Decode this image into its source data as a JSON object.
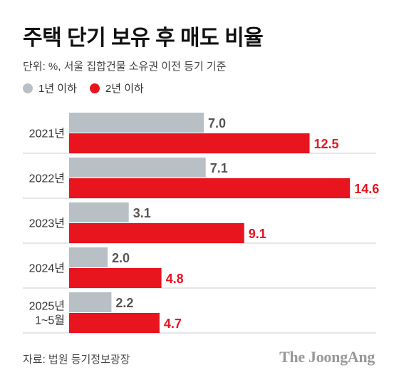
{
  "title": "주택 단기 보유 후 매도 비율",
  "subtitle": "단위: %, 서울 집합건물 소유권 이전 등기 기준",
  "source": "자료: 법원 등기정보광장",
  "brand": "The JoongAng",
  "colors": {
    "series1": "#b9c0c5",
    "series2": "#e8141e",
    "label1": "#555555",
    "label2": "#e8141e",
    "separator": "#cccccc"
  },
  "chart_data": {
    "type": "bar",
    "orientation": "horizontal",
    "categories": [
      [
        "2021년"
      ],
      [
        "2022년"
      ],
      [
        "2023년"
      ],
      [
        "2024년"
      ],
      [
        "2025년",
        "1~5월"
      ]
    ],
    "series": [
      {
        "name": "1년 이하",
        "values": [
          7.0,
          7.1,
          3.1,
          2.0,
          2.2
        ],
        "labels": [
          "7.0",
          "7.1",
          "3.1",
          "2.0",
          "2.2"
        ]
      },
      {
        "name": "2년 이하",
        "values": [
          12.5,
          14.6,
          9.1,
          4.8,
          4.7
        ],
        "labels": [
          "12.5",
          "14.6",
          "9.1",
          "4.8",
          "4.7"
        ]
      }
    ],
    "legend_position": "top-left",
    "grid": false
  }
}
